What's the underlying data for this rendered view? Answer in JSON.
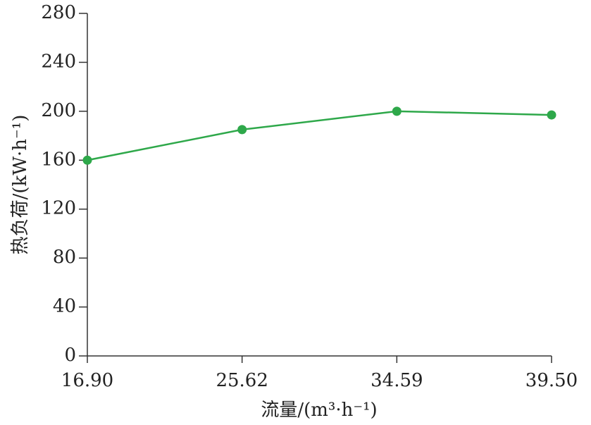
{
  "chart_data": {
    "type": "line",
    "x_label": "流量/(m³·h⁻¹)",
    "y_label": "热负荷/(kW·h⁻¹)",
    "categories": [
      "16.90",
      "25.62",
      "34.59",
      "39.50"
    ],
    "values": [
      160,
      185,
      200,
      197
    ],
    "color": "#2ea84a",
    "ylim": [
      0,
      280
    ],
    "yticks": [
      0,
      40,
      80,
      120,
      160,
      200,
      240,
      280
    ],
    "grid": false
  }
}
